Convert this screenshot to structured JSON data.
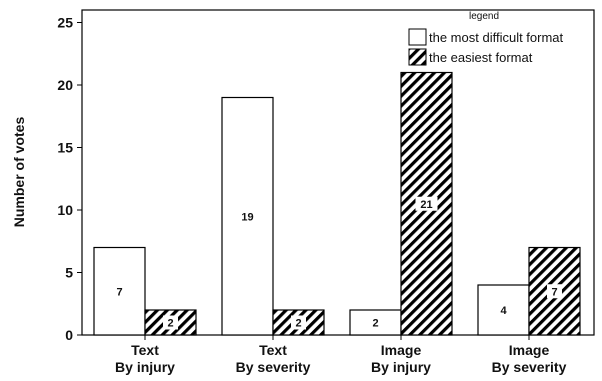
{
  "chart_data": {
    "type": "bar",
    "title": "",
    "xlabel": "",
    "ylabel": "Number of votes",
    "ylim": [
      0,
      26
    ],
    "yticks": [
      0,
      5,
      10,
      15,
      20,
      25
    ],
    "categories": [
      [
        "Text",
        "By injury"
      ],
      [
        "Text",
        "By severity"
      ],
      [
        "Image",
        "By injury"
      ],
      [
        "Image",
        "By severity"
      ]
    ],
    "legend_title": "legend",
    "legend_position": "top-right",
    "grid": false,
    "series": [
      {
        "name": "the most difficult format",
        "values": [
          7,
          19,
          2,
          4
        ],
        "pattern": "none",
        "color": "#ffffff"
      },
      {
        "name": "the easiest format",
        "values": [
          2,
          2,
          21,
          7
        ],
        "pattern": "diagonal-hatch",
        "color": "#000000"
      }
    ]
  }
}
